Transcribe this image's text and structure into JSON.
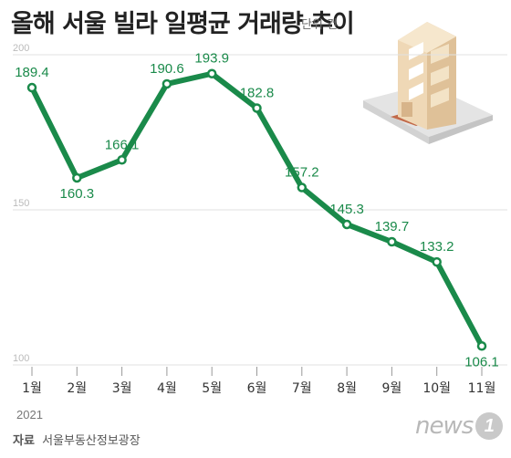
{
  "header": {
    "title": "올해 서울 빌라 일평균 거래량 추이",
    "unit": "단위 건"
  },
  "footer": {
    "year": "2021",
    "source_label": "자료",
    "source": "서울부동산정보광장",
    "logo_word": "news",
    "logo_mark": "1"
  },
  "colors": {
    "line": "#1a8a4a",
    "point_fill": "#ffffff",
    "label": "#1a8a4a",
    "grid": "#e2e2e2",
    "tick": "#bbbbbb"
  },
  "chart_data": {
    "type": "line",
    "categories": [
      "1월",
      "2월",
      "3월",
      "4월",
      "5월",
      "6월",
      "7월",
      "8월",
      "9월",
      "10월",
      "11월"
    ],
    "values": [
      189.4,
      160.3,
      166.1,
      190.6,
      193.9,
      182.8,
      157.2,
      145.3,
      139.7,
      133.2,
      106.1
    ],
    "value_labels": [
      "189.4",
      "160.3",
      "166.1",
      "190.6",
      "193.9",
      "182.8",
      "157.2",
      "145.3",
      "139.7",
      "133.2",
      "106.1"
    ],
    "yticks": [
      100,
      150,
      200
    ],
    "ylim": [
      100,
      200
    ],
    "grid": true,
    "title": "올해 서울 빌라 일평균 거래량 추이",
    "ylabel": "단위 건",
    "xlabel": ""
  }
}
